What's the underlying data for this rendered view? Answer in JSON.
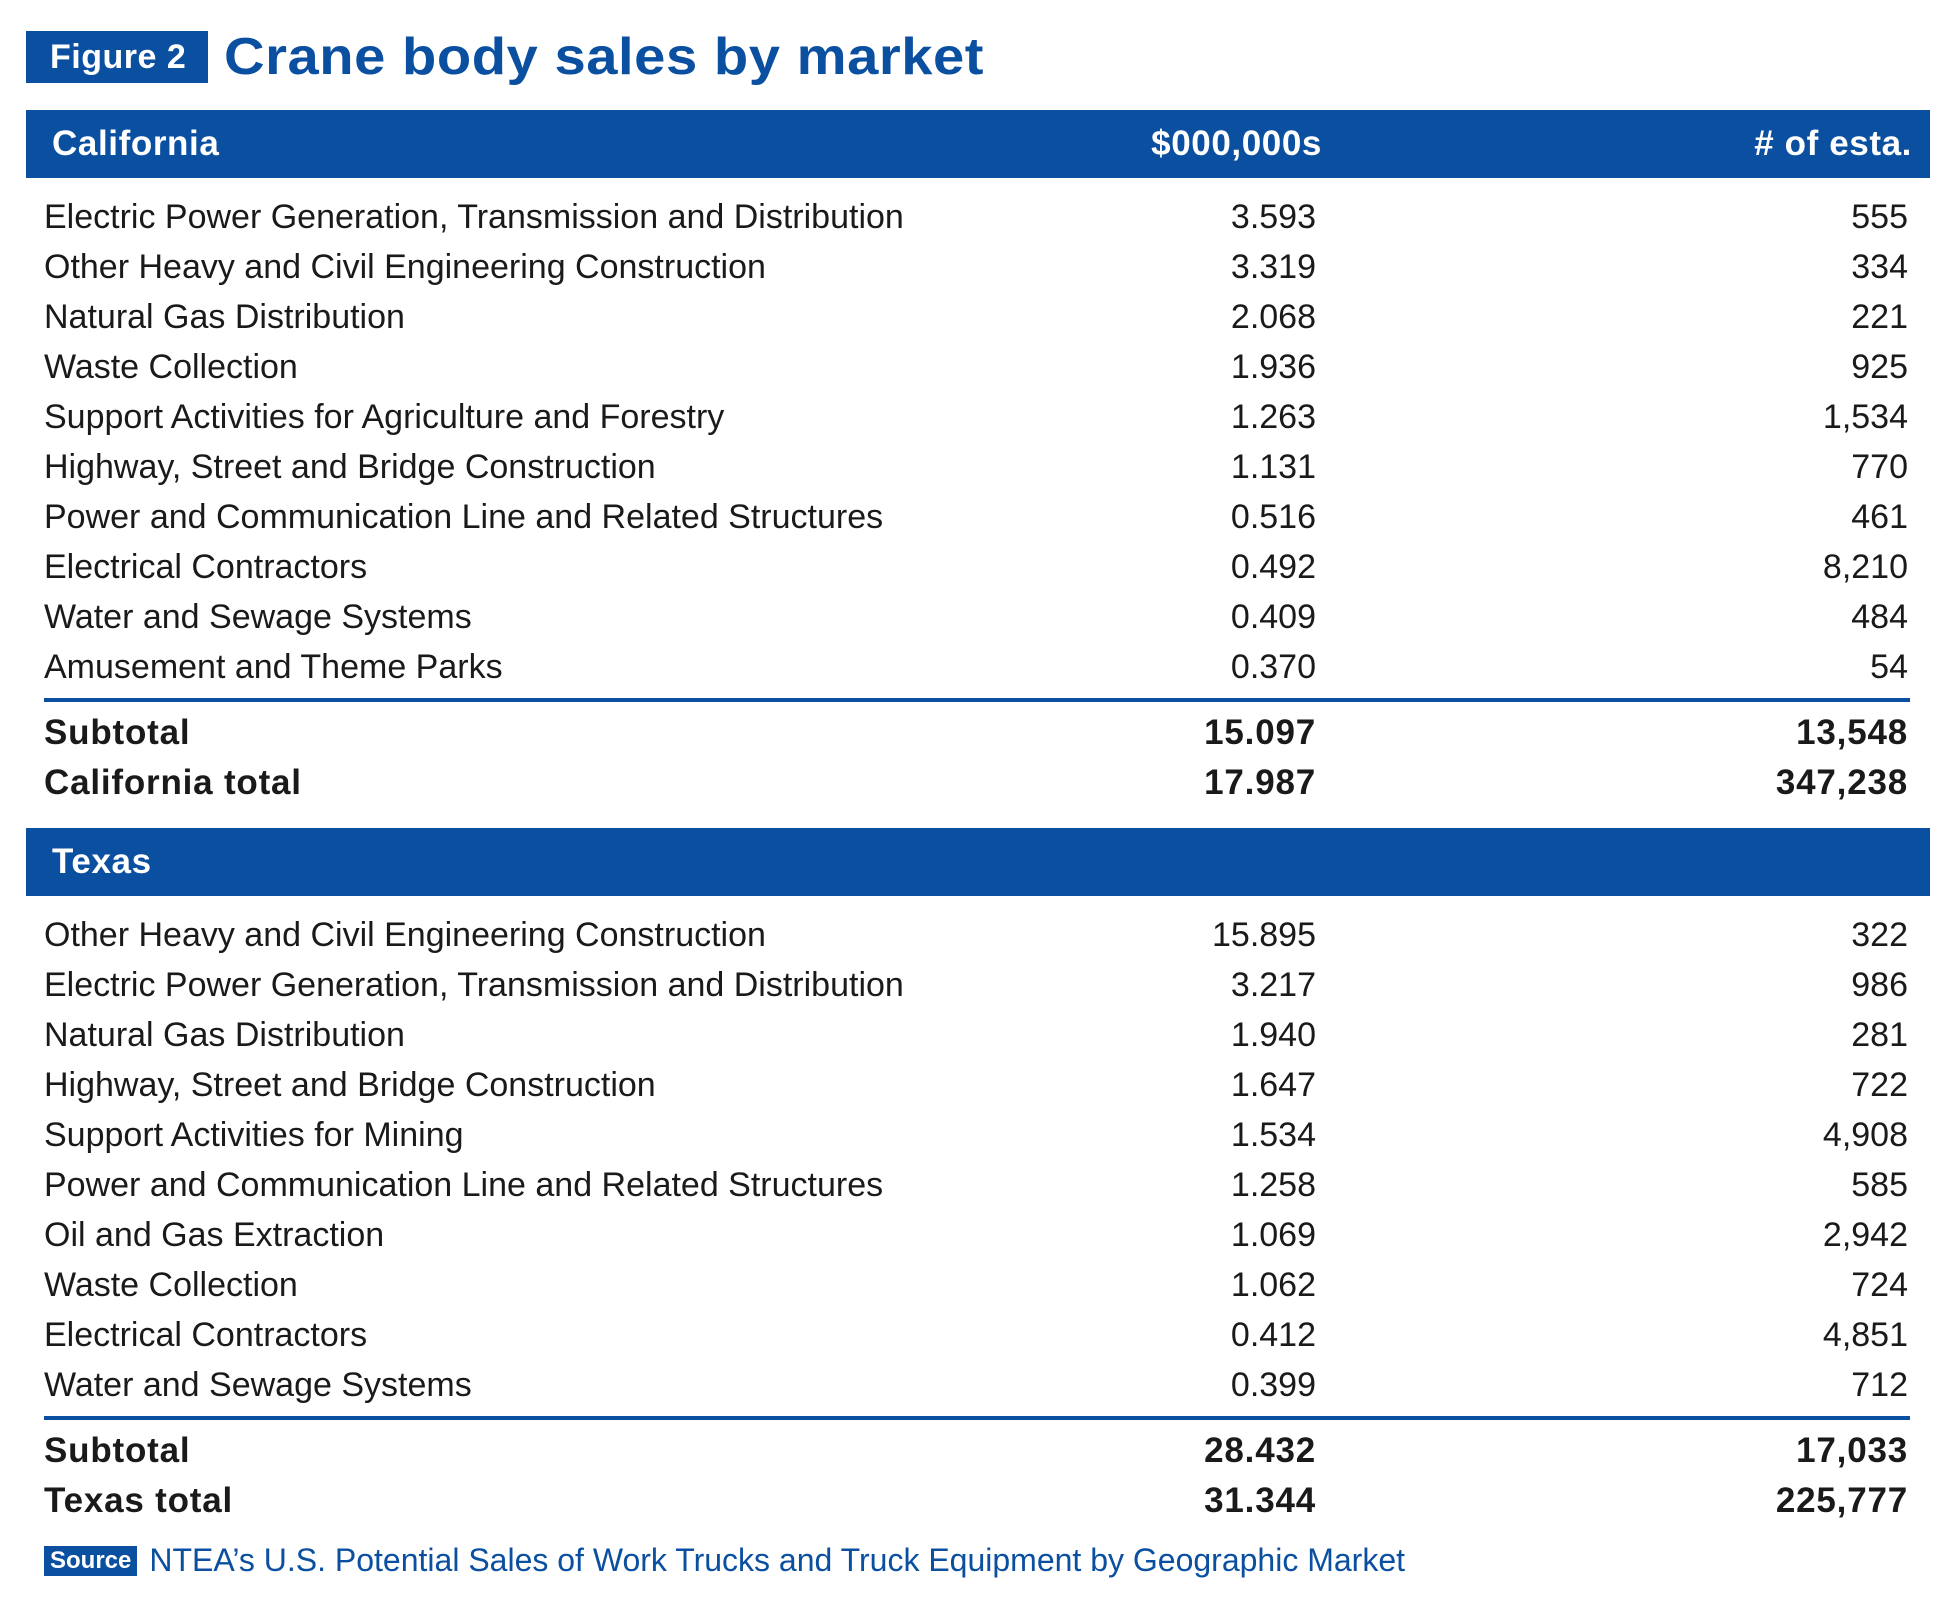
{
  "figure_label": "Figure 2",
  "title": "Crane body sales by market",
  "columns": {
    "amount": "$000,000s",
    "establishments": "# of esta."
  },
  "source_label": "Source",
  "source_text": "NTEA’s U.S. Potential Sales of Work Trucks and Truck Equipment by Geographic Market",
  "chart_data": {
    "type": "table",
    "title": "Crane body sales by market",
    "columns": [
      "",
      "$000,000s",
      "# of esta."
    ],
    "sections": [
      {
        "name": "California",
        "rows": [
          {
            "market": "Electric Power Generation, Transmission and Distribution",
            "amount": "3.593",
            "establishments": "555"
          },
          {
            "market": "Other Heavy and Civil Engineering Construction",
            "amount": "3.319",
            "establishments": "334"
          },
          {
            "market": "Natural Gas Distribution",
            "amount": "2.068",
            "establishments": "221"
          },
          {
            "market": "Waste Collection",
            "amount": "1.936",
            "establishments": "925"
          },
          {
            "market": "Support Activities for Agriculture and Forestry",
            "amount": "1.263",
            "establishments": "1,534"
          },
          {
            "market": "Highway, Street and Bridge Construction",
            "amount": "1.131",
            "establishments": "770"
          },
          {
            "market": "Power and Communication Line and Related Structures",
            "amount": "0.516",
            "establishments": "461"
          },
          {
            "market": "Electrical Contractors",
            "amount": "0.492",
            "establishments": "8,210"
          },
          {
            "market": "Water and Sewage Systems",
            "amount": "0.409",
            "establishments": "484"
          },
          {
            "market": "Amusement and Theme Parks",
            "amount": "0.370",
            "establishments": "54"
          }
        ],
        "subtotal": {
          "label": "Subtotal",
          "amount": "15.097",
          "establishments": "13,548"
        },
        "total": {
          "label": "California total",
          "amount": "17.987",
          "establishments": "347,238"
        }
      },
      {
        "name": "Texas",
        "rows": [
          {
            "market": "Other Heavy and Civil Engineering Construction",
            "amount": "15.895",
            "establishments": "322"
          },
          {
            "market": "Electric Power Generation, Transmission and Distribution",
            "amount": "3.217",
            "establishments": "986"
          },
          {
            "market": "Natural Gas Distribution",
            "amount": "1.940",
            "establishments": "281"
          },
          {
            "market": "Highway, Street and Bridge Construction",
            "amount": "1.647",
            "establishments": "722"
          },
          {
            "market": "Support Activities for Mining",
            "amount": "1.534",
            "establishments": "4,908"
          },
          {
            "market": "Power and Communication Line and Related Structures",
            "amount": "1.258",
            "establishments": "585"
          },
          {
            "market": "Oil and Gas Extraction",
            "amount": "1.069",
            "establishments": "2,942"
          },
          {
            "market": "Waste Collection",
            "amount": "1.062",
            "establishments": "724"
          },
          {
            "market": "Electrical Contractors",
            "amount": "0.412",
            "establishments": "4,851"
          },
          {
            "market": "Water and Sewage Systems",
            "amount": "0.399",
            "establishments": "712"
          }
        ],
        "subtotal": {
          "label": "Subtotal",
          "amount": "28.432",
          "establishments": "17,033"
        },
        "total": {
          "label": "Texas total",
          "amount": "31.344",
          "establishments": "225,777"
        }
      }
    ]
  },
  "colors": {
    "accent": "#0b4fa0",
    "text": "#1a1a1a",
    "background": "#ffffff"
  }
}
